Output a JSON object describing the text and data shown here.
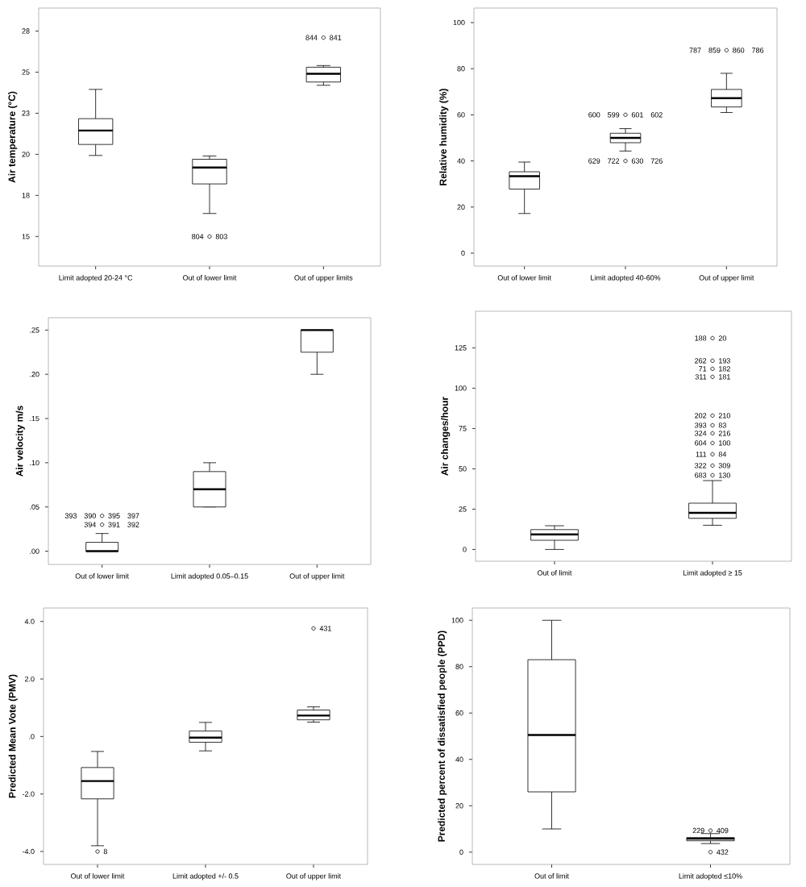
{
  "chart_data": [
    {
      "type": "box",
      "ylabel": "Air temperature (°C)",
      "categories": [
        "Limit adopted 20-24 °C",
        "Out of lower limit",
        "Out of upper limits"
      ],
      "boxes": [
        {
          "low": 19.93,
          "q1": 20.6,
          "median": 21.45,
          "q3": 22.17,
          "high": 23.95
        },
        {
          "low": 16.4,
          "q1": 18.2,
          "median": 19.2,
          "q3": 19.7,
          "high": 19.9,
          "outliers": [
            15.0
          ]
        },
        {
          "low": 24.2,
          "q1": 24.4,
          "median": 24.9,
          "q3": 25.3,
          "high": 25.4,
          "outliers": [
            27.1
          ]
        }
      ],
      "ylim": [
        13.2,
        28.9
      ],
      "yticks": [
        {
          "value": 15,
          "label": "15"
        },
        {
          "value": 17.5,
          "label": "18"
        },
        {
          "value": 20,
          "label": "20"
        },
        {
          "value": 22.5,
          "label": "23"
        },
        {
          "value": 25,
          "label": "25"
        },
        {
          "value": 27.5,
          "label": "28"
        }
      ],
      "annotations": [
        "803",
        "804",
        "841",
        "844"
      ]
    },
    {
      "type": "box",
      "ylabel": "Relative humidity (%)",
      "categories": [
        "Out of lower limit",
        "Limit adopted 40-60%",
        "Out of upper limit"
      ],
      "boxes": [
        {
          "low": 17.2,
          "q1": 27.8,
          "median": 33.4,
          "q3": 35.3,
          "high": 39.5
        },
        {
          "low": 44.3,
          "q1": 47.9,
          "median": 50,
          "q3": 52,
          "high": 54,
          "outliers": [
            60,
            40
          ]
        },
        {
          "low": 61,
          "q1": 63.4,
          "median": 67.2,
          "q3": 71,
          "high": 78,
          "outliers": [
            88
          ]
        }
      ],
      "ylim": [
        -5.6,
        106.3
      ],
      "yticks": [
        0,
        20,
        40,
        60,
        80,
        100
      ],
      "annotations": [
        "601",
        "599",
        "602",
        "600",
        "630",
        "722",
        "726",
        "629",
        "860",
        "859",
        "786",
        "787"
      ]
    },
    {
      "type": "box",
      "ylabel": "Air velocity m/s",
      "categories": [
        "Out of lower limit",
        "Limit adopted 0.05–0.15",
        "Out of upper limit"
      ],
      "boxes": [
        {
          "low": 0,
          "q1": 0,
          "median": 0,
          "q3": 0.01,
          "high": 0.02,
          "outliers": [
            0.04,
            0.03
          ]
        },
        {
          "low": 0.05,
          "q1": 0.05,
          "median": 0.07,
          "q3": 0.09,
          "high": 0.1
        },
        {
          "low": 0.2,
          "q1": 0.225,
          "median": 0.25,
          "q3": 0.25,
          "high": 0.25
        }
      ],
      "ylim": [
        -0.015,
        0.264
      ],
      "yticks": [
        {
          "value": 0,
          "label": ".00"
        },
        {
          "value": 0.05,
          "label": ".05"
        },
        {
          "value": 0.1,
          "label": ".10"
        },
        {
          "value": 0.15,
          "label": ".15"
        },
        {
          "value": 0.2,
          "label": ".20"
        },
        {
          "value": 0.25,
          "label": ".25"
        }
      ],
      "annotations": [
        "395",
        "390",
        "397",
        "393",
        "391",
        "394",
        "392"
      ]
    },
    {
      "type": "box",
      "ylabel": "Air changes/hour",
      "categories": [
        "Out of limit",
        "Limit adopted ≥ 15"
      ],
      "boxes": [
        {
          "low": 0,
          "q1": 5.7,
          "median": 9.3,
          "q3": 12.3,
          "high": 14.7
        },
        {
          "low": 15,
          "q1": 19.3,
          "median": 22.7,
          "q3": 28.7,
          "high": 42.7,
          "outliers": [
            131,
            117,
            112,
            107,
            83,
            77,
            72,
            66,
            59,
            52,
            46
          ]
        }
      ],
      "ylim": [
        -7.3,
        147.7
      ],
      "yticks": [
        0,
        25,
        50,
        75,
        100,
        125
      ],
      "annotations": [
        "20",
        "188",
        "193",
        "262",
        "182",
        "71",
        "181",
        "311",
        "210",
        "202",
        "83",
        "393",
        "216",
        "324",
        "100",
        "604",
        "84",
        "111",
        "309",
        "322",
        "130",
        "683"
      ]
    },
    {
      "type": "box",
      "ylabel": "Predicted Mean Vote (PMV)",
      "categories": [
        "Out of lower limit",
        "Limit adopted +/- 0.5",
        "Out of upper limit"
      ],
      "boxes": [
        {
          "low": -3.8,
          "q1": -2.17,
          "median": -1.55,
          "q3": -1.08,
          "high": -0.52,
          "outliers": [
            -4.0
          ]
        },
        {
          "low": -0.5,
          "q1": -0.2,
          "median": -0.04,
          "q3": 0.19,
          "high": 0.49
        },
        {
          "low": 0.5,
          "q1": 0.58,
          "median": 0.73,
          "q3": 0.92,
          "high": 1.03,
          "outliers": [
            3.76
          ]
        }
      ],
      "ylim": [
        -4.45,
        4.47
      ],
      "yticks": [
        {
          "value": -4,
          "label": "-4.0"
        },
        {
          "value": -2,
          "label": "-2.0"
        },
        {
          "value": 0,
          "label": ".0"
        },
        {
          "value": 2,
          "label": "2.0"
        },
        {
          "value": 4,
          "label": "4.0"
        }
      ],
      "annotations": [
        "8",
        "431"
      ]
    },
    {
      "type": "box",
      "ylabel": "Predicted percent of dissatisfied people (PPD)",
      "categories": [
        "Out of limit",
        "Limit adopted ≤10%"
      ],
      "boxes": [
        {
          "low": 10,
          "q1": 26,
          "median": 50.5,
          "q3": 83,
          "high": 100
        },
        {
          "low": 3.7,
          "q1": 4.9,
          "median": 5.8,
          "q3": 6.3,
          "high": 8,
          "outliers": [
            9.3,
            0
          ]
        }
      ],
      "ylim": [
        -5.3,
        105.3
      ],
      "yticks": [
        0,
        20,
        40,
        60,
        80,
        100
      ],
      "annotations": [
        "409",
        "229",
        "432"
      ]
    }
  ]
}
